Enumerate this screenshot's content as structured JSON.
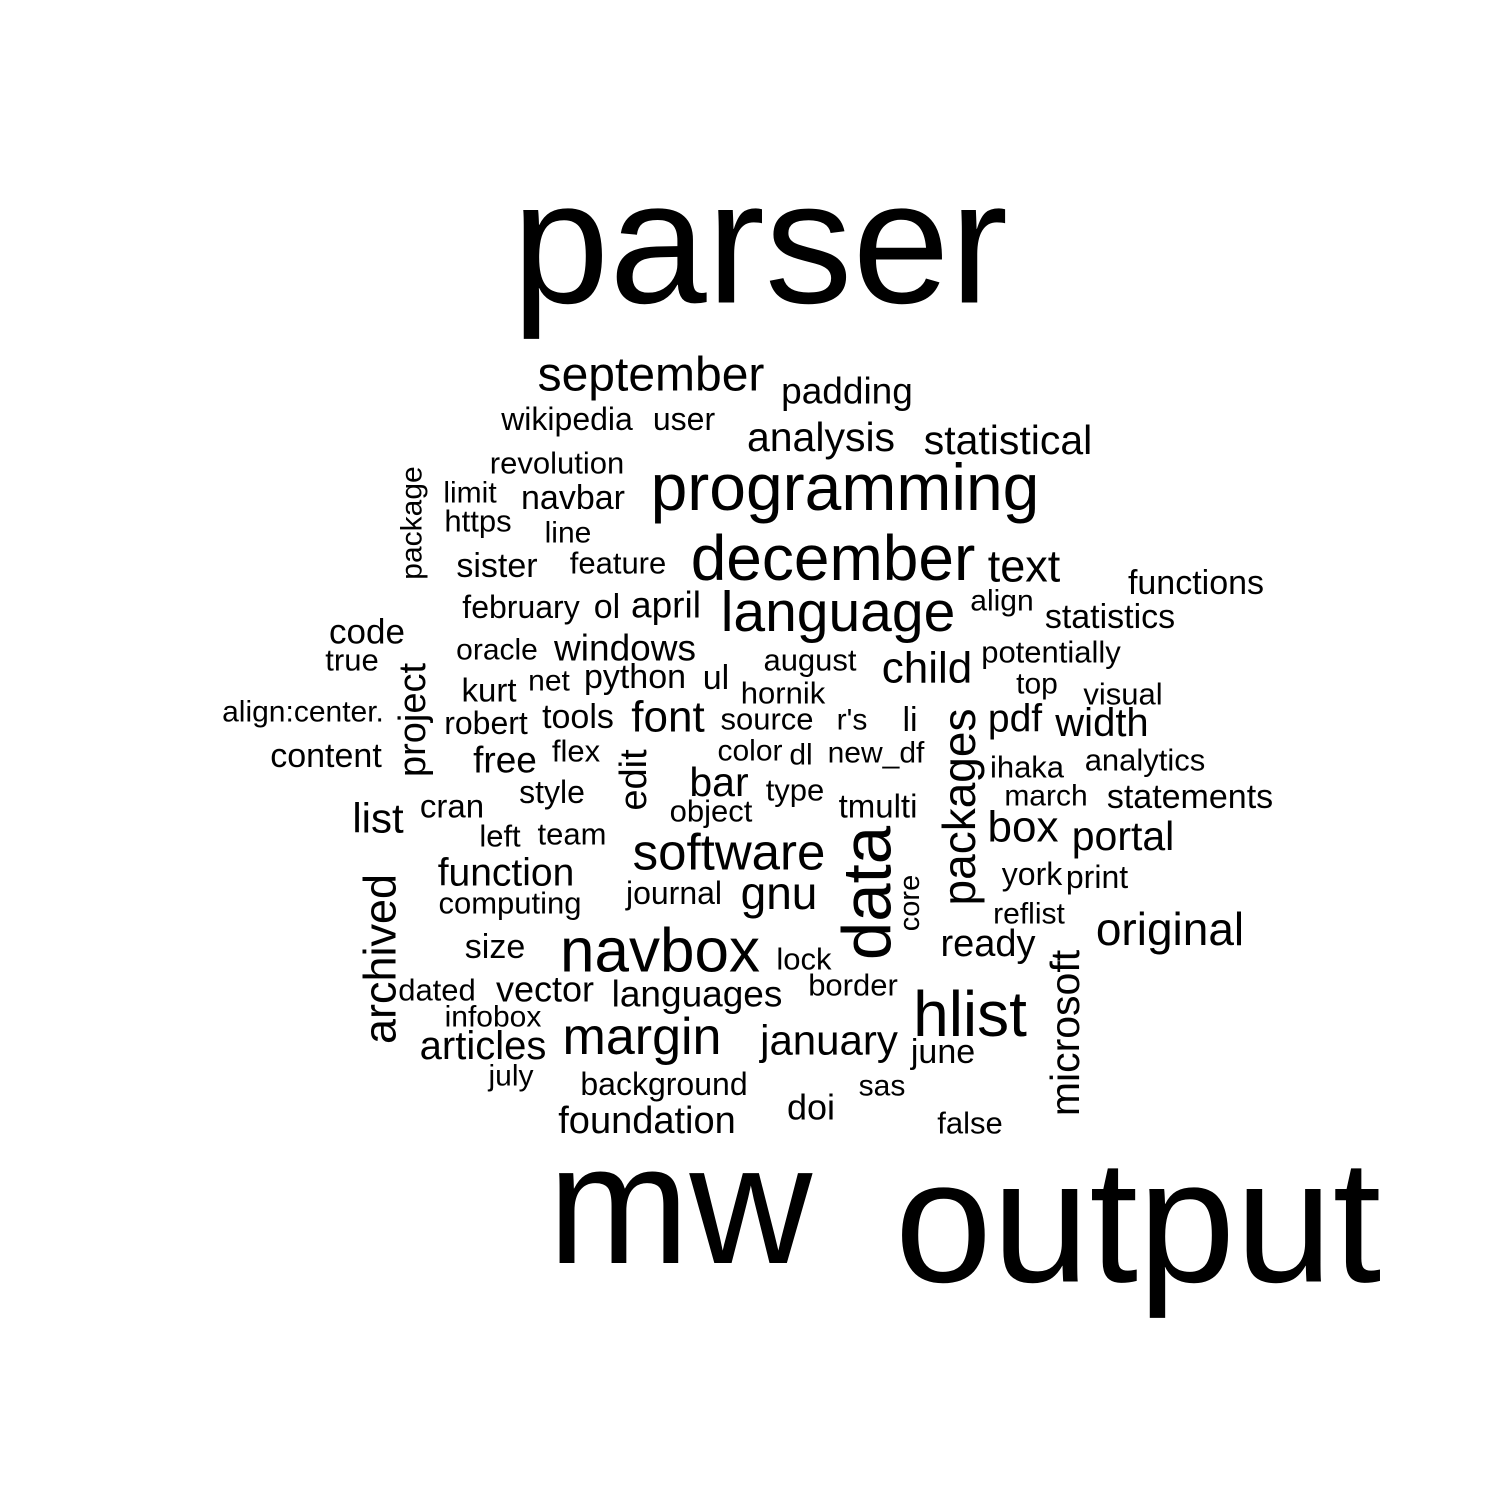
{
  "text_color": "#000000",
  "background_color": "#ffffff",
  "words": [
    {
      "text": "parser"
    },
    {
      "text": "output"
    },
    {
      "text": "mw"
    },
    {
      "text": "september"
    },
    {
      "text": "padding"
    },
    {
      "text": "wikipedia"
    },
    {
      "text": "user"
    },
    {
      "text": "analysis"
    },
    {
      "text": "statistical"
    },
    {
      "text": "revolution"
    },
    {
      "text": "programming"
    },
    {
      "text": "limit"
    },
    {
      "text": "navbar"
    },
    {
      "text": "https"
    },
    {
      "text": "line"
    },
    {
      "text": "package"
    },
    {
      "text": "december"
    },
    {
      "text": "text"
    },
    {
      "text": "sister"
    },
    {
      "text": "feature"
    },
    {
      "text": "functions"
    },
    {
      "text": "language"
    },
    {
      "text": "february"
    },
    {
      "text": "ol"
    },
    {
      "text": "april"
    },
    {
      "text": "align"
    },
    {
      "text": "statistics"
    },
    {
      "text": "code"
    },
    {
      "text": "oracle"
    },
    {
      "text": "windows"
    },
    {
      "text": "true"
    },
    {
      "text": "august"
    },
    {
      "text": "potentially"
    },
    {
      "text": "child"
    },
    {
      "text": "kurt"
    },
    {
      "text": "net"
    },
    {
      "text": "python"
    },
    {
      "text": "ul"
    },
    {
      "text": "hornik"
    },
    {
      "text": "top"
    },
    {
      "text": "visual"
    },
    {
      "text": "align:center."
    },
    {
      "text": "project"
    },
    {
      "text": "robert"
    },
    {
      "text": "tools"
    },
    {
      "text": "font"
    },
    {
      "text": "source"
    },
    {
      "text": "r's"
    },
    {
      "text": "li"
    },
    {
      "text": "pdf"
    },
    {
      "text": "width"
    },
    {
      "text": "content"
    },
    {
      "text": "free"
    },
    {
      "text": "flex"
    },
    {
      "text": "edit"
    },
    {
      "text": "color"
    },
    {
      "text": "dl"
    },
    {
      "text": "new_df"
    },
    {
      "text": "packages"
    },
    {
      "text": "ihaka"
    },
    {
      "text": "analytics"
    },
    {
      "text": "bar"
    },
    {
      "text": "style"
    },
    {
      "text": "type"
    },
    {
      "text": "cran"
    },
    {
      "text": "object"
    },
    {
      "text": "tmulti"
    },
    {
      "text": "march"
    },
    {
      "text": "statements"
    },
    {
      "text": "list"
    },
    {
      "text": "left"
    },
    {
      "text": "team"
    },
    {
      "text": "box"
    },
    {
      "text": "portal"
    },
    {
      "text": "software"
    },
    {
      "text": "data"
    },
    {
      "text": "function"
    },
    {
      "text": "york"
    },
    {
      "text": "print"
    },
    {
      "text": "archived"
    },
    {
      "text": "journal"
    },
    {
      "text": "gnu"
    },
    {
      "text": "core"
    },
    {
      "text": "computing"
    },
    {
      "text": "reflist"
    },
    {
      "text": "original"
    },
    {
      "text": "navbox"
    },
    {
      "text": "ready"
    },
    {
      "text": "size"
    },
    {
      "text": "lock"
    },
    {
      "text": "microsoft"
    },
    {
      "text": "dated"
    },
    {
      "text": "vector"
    },
    {
      "text": "languages"
    },
    {
      "text": "border"
    },
    {
      "text": "hlist"
    },
    {
      "text": "infobox"
    },
    {
      "text": "margin"
    },
    {
      "text": "january"
    },
    {
      "text": "articles"
    },
    {
      "text": "june"
    },
    {
      "text": "july"
    },
    {
      "text": "background"
    },
    {
      "text": "sas"
    },
    {
      "text": "doi"
    },
    {
      "text": "foundation"
    },
    {
      "text": "false"
    }
  ]
}
